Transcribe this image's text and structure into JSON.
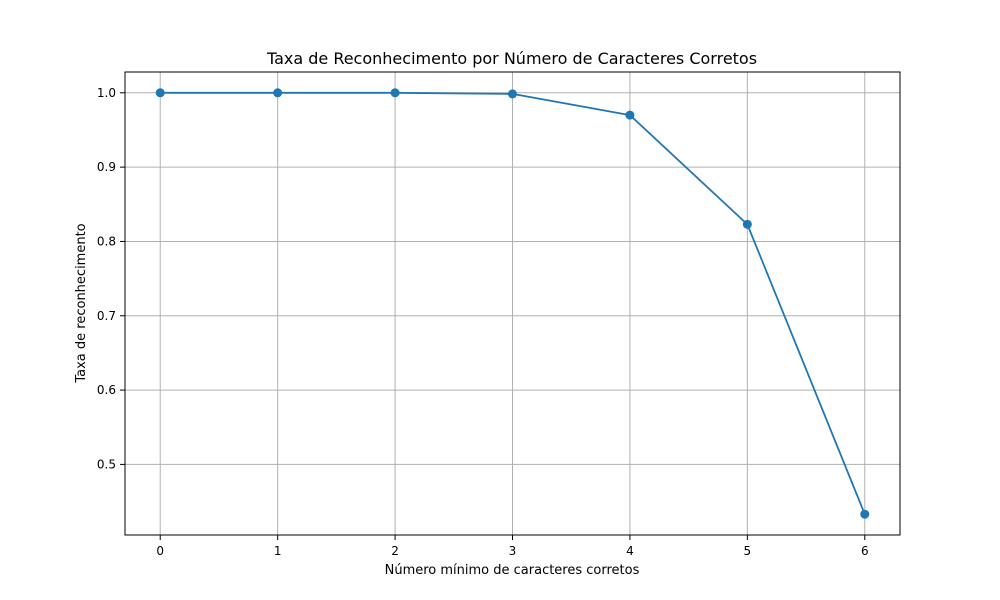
{
  "chart_data": {
    "type": "line",
    "title": "Taxa de Reconhecimento por Número de Caracteres Corretos",
    "xlabel": "Número mínimo de caracteres corretos",
    "ylabel": "Taxa de reconhecimento",
    "x": [
      0,
      1,
      2,
      3,
      4,
      5,
      6
    ],
    "series": [
      {
        "values": [
          1.0,
          1.0,
          1.0,
          0.9985,
          0.97,
          0.823,
          0.433
        ],
        "color": "#1f77b4",
        "marker": "circle"
      }
    ],
    "xticks": [
      0,
      1,
      2,
      3,
      4,
      5,
      6
    ],
    "xtick_labels": [
      "0",
      "1",
      "2",
      "3",
      "4",
      "5",
      "6"
    ],
    "yticks": [
      0.5,
      0.6,
      0.7,
      0.8,
      0.9,
      1.0
    ],
    "ytick_labels": [
      "0.5",
      "0.6",
      "0.7",
      "0.8",
      "0.9",
      "1.0"
    ],
    "xlim": [
      -0.3,
      6.3
    ],
    "ylim": [
      0.405,
      1.028
    ],
    "grid": true
  }
}
